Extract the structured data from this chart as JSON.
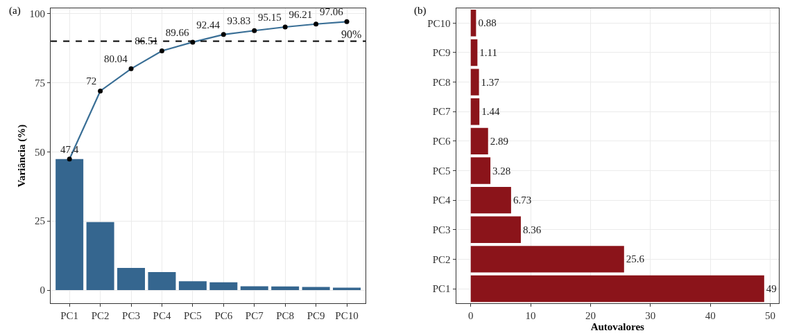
{
  "chart_data": [
    {
      "type": "bar",
      "ylabel": "Variância (%)",
      "categories": [
        "PC1",
        "PC2",
        "PC3",
        "PC4",
        "PC5",
        "PC6",
        "PC7",
        "PC8",
        "PC9",
        "PC10"
      ],
      "series": [
        {
          "type": "bar",
          "color": "#35668f",
          "values": [
            47.4,
            24.6,
            8.0,
            6.5,
            3.2,
            2.8,
            1.4,
            1.3,
            1.1,
            0.9
          ]
        },
        {
          "type": "line",
          "color": "#3a6f96",
          "marker": "circle",
          "values": [
            47.4,
            72,
            80.04,
            86.51,
            89.66,
            92.44,
            93.83,
            95.15,
            96.21,
            97.06
          ],
          "value_labels": [
            "47.4",
            "72",
            "80.04",
            "86.51",
            "89.66",
            "92.44",
            "93.83",
            "95.15",
            "96.21",
            "97.06"
          ]
        }
      ],
      "ylim": [
        -4.85,
        101.91
      ],
      "yticks": [
        0,
        25,
        50,
        75,
        100
      ],
      "ref_lines": [
        {
          "axis": "y",
          "value": 90,
          "label": "90%",
          "color": "#000000",
          "line_style": "dashed"
        }
      ],
      "annotations": [
        "(a)"
      ],
      "grid": true
    },
    {
      "type": "bar",
      "orientation": "horizontal",
      "xlabel": "Autovalores",
      "categories": [
        "PC10",
        "PC9",
        "PC8",
        "PC7",
        "PC6",
        "PC5",
        "PC4",
        "PC3",
        "PC2",
        "PC1"
      ],
      "values": [
        0.88,
        1.11,
        1.37,
        1.44,
        2.89,
        3.28,
        6.73,
        8.36,
        25.6,
        49
      ],
      "color": "#8b141a",
      "data_labels": true,
      "xlim": [
        -2.45,
        51.45
      ],
      "xticks": [
        0,
        10,
        20,
        30,
        40,
        50
      ],
      "annotations": [
        "(b)"
      ],
      "grid": true
    }
  ]
}
